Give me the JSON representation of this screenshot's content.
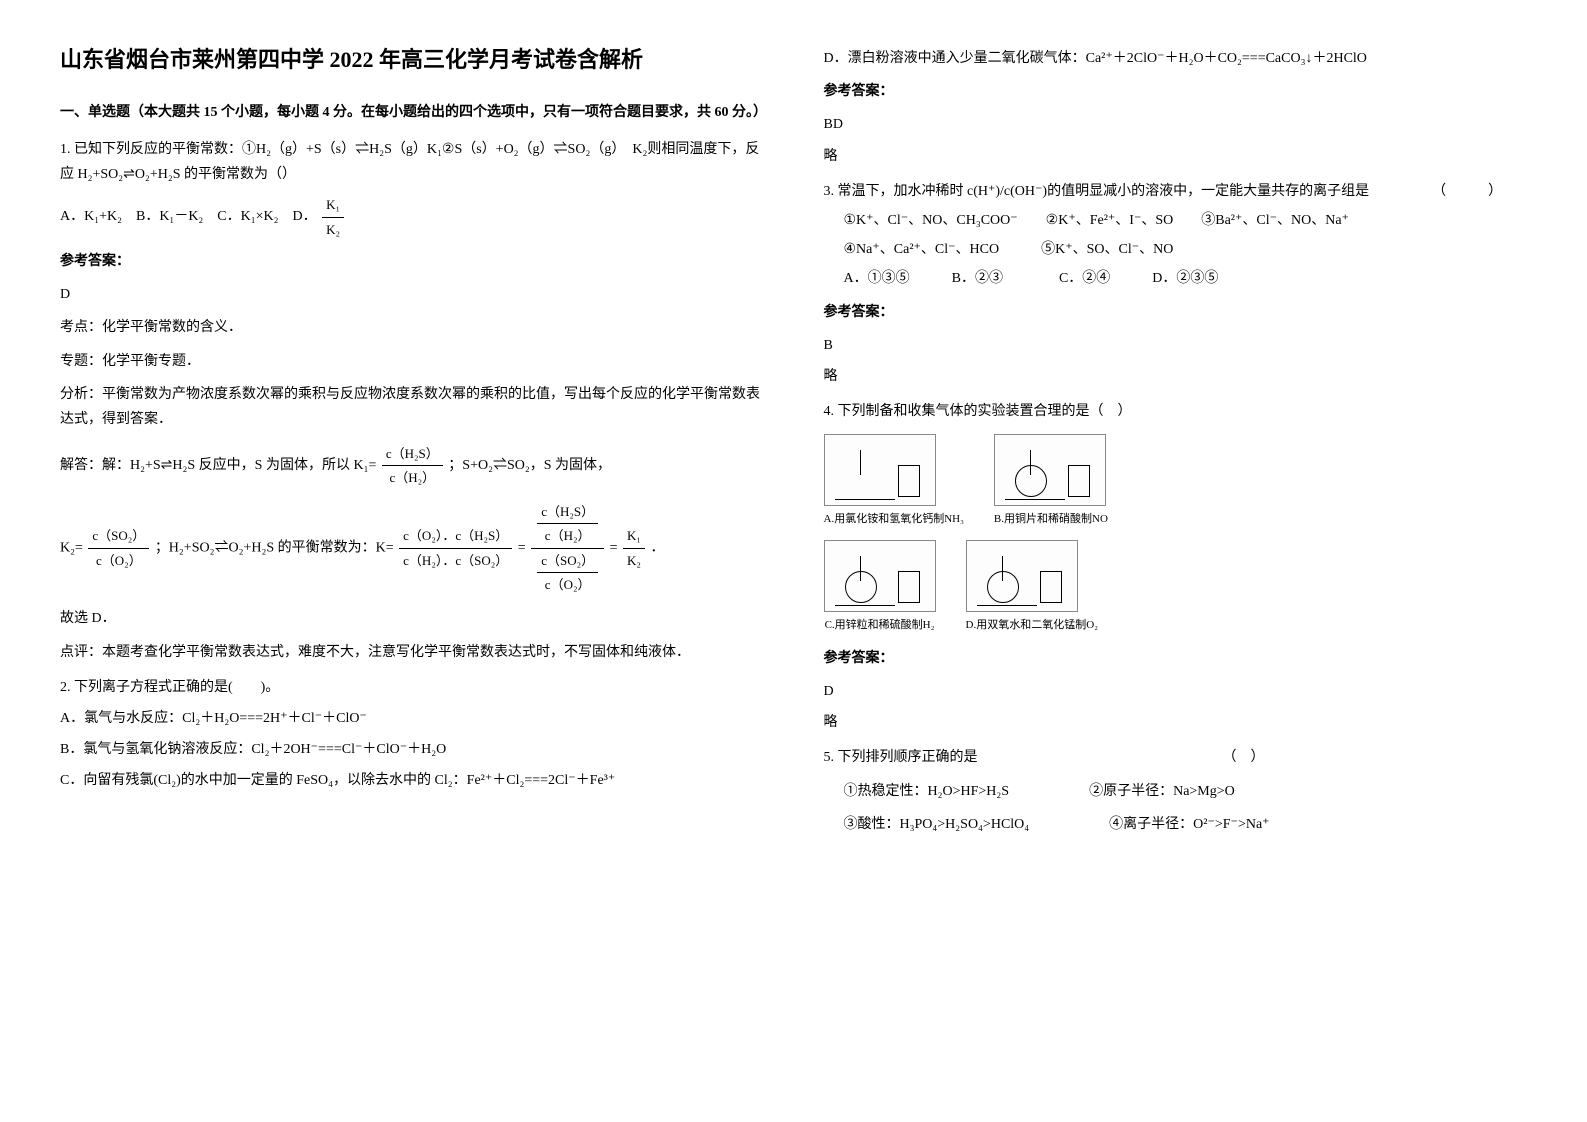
{
  "title": "山东省烟台市莱州第四中学 2022 年高三化学月考试卷含解析",
  "section1_header": "一、单选题（本大题共 15 个小题，每小题 4 分。在每小题给出的四个选项中，只有一项符合题目要求，共 60 分。）",
  "q1": {
    "stem": "1. 已知下列反应的平衡常数：①H₂（g）+S（s）⇌H₂S（g）K₁②S（s）+O₂（g）⇌SO₂（g）　K₂则相同温度下，反应 H₂+SO₂⇌O₂+H₂S 的平衡常数为（）",
    "options": "A．K₁+K₂　B．K₁－K₂　C．K₁×K₂　D．",
    "frac_num": "K₁",
    "frac_den": "K₂",
    "answer_label": "参考答案：",
    "answer": "D",
    "point": "考点：化学平衡常数的含义．",
    "topic": "专题：化学平衡专题．",
    "analysis": "分析：平衡常数为产物浓度系数次幂的乘积与反应物浓度系数次幂的乘积的比值，写出每个反应的化学平衡常数表达式，得到答案．",
    "solve_pre": "解答：解：H₂+S⇌H₂S 反应中，S 为固体，所以 K₁=",
    "solve_f1_num": "c（H₂S）",
    "solve_f1_den": "c（H₂）",
    "solve_mid1": "；S+O₂⇌SO₂，S 为固体，",
    "solve_k2pre": "K₂=",
    "solve_f2_num": "c（SO₂）",
    "solve_f2_den": "c（O₂）",
    "solve_mid2": "；H₂+SO₂⇌O₂+H₂S 的平衡常数为：K=",
    "solve_f3_num": "c（O₂）．c（H₂S）",
    "solve_f3_den": "c（H₂）．c（SO₂）",
    "solve_eq": "=",
    "solve_f4a_num": "c（H₂S）",
    "solve_f4a_den": "c（H₂）",
    "solve_f4b_num": "c（SO₂）",
    "solve_f4b_den": "c（O₂）",
    "solve_f5_num": "K₁",
    "solve_f5_den": "K₂",
    "solve_end": "．",
    "conclude": "故选 D．",
    "comment": "点评：本题考查化学平衡常数表达式，难度不大，注意写化学平衡常数表达式时，不写固体和纯液体．"
  },
  "q2": {
    "stem": "2. 下列离子方程式正确的是(　　)。",
    "optA": "A．氯气与水反应：Cl₂＋H₂O===2H⁺＋Cl⁻＋ClO⁻",
    "optB": "B．氯气与氢氧化钠溶液反应：Cl₂＋2OH⁻===Cl⁻＋ClO⁻＋H₂O",
    "optC": "C．向留有残氯(Cl₂)的水中加一定量的 FeSO₄，以除去水中的 Cl₂：Fe²⁺＋Cl₂===2Cl⁻＋Fe³⁺",
    "optD": "D．漂白粉溶液中通入少量二氧化碳气体：Ca²⁺＋2ClO⁻＋H₂O＋CO₂===CaCO₃↓＋2HClO",
    "answer_label": "参考答案：",
    "answer": "BD",
    "omit": "略"
  },
  "q3": {
    "stem": "3. 常温下，加水冲稀时 c(H⁺)/c(OH⁻)的值明显减小的溶液中，一定能大量共存的离子组是　　　　　（　　　）",
    "opt1": "①K⁺、Cl⁻、NO、CH₃COO⁻　　②K⁺、Fe²⁺、I⁻、SO　　③Ba²⁺、Cl⁻、NO、Na⁺",
    "opt2": "④Na⁺、Ca²⁺、Cl⁻、HCO　　　⑤K⁺、SO、Cl⁻、NO",
    "choices": "A．①③⑤　　　B．②③　　　　C．②④　　　D．②③⑤",
    "answer_label": "参考答案：",
    "answer": "B",
    "omit": "略"
  },
  "q4": {
    "stem": "4. 下列制备和收集气体的实验装置合理的是（　）",
    "figA": "A.用氯化铵和氢氧化钙制NH₃",
    "figB": "B.用铜片和稀硝酸制NO",
    "figC": "C.用锌粒和稀硫酸制H₂",
    "figD": "D.用双氧水和二氧化锰制O₂",
    "answer_label": "参考答案：",
    "answer": "D",
    "omit": "略"
  },
  "q5": {
    "stem": "5. 下列排列顺序正确的是　　　　　　　　　　　　　　　　　　（　）",
    "opt1": "①热稳定性：H₂O>HF>H₂S",
    "opt2": "②原子半径：Na>Mg>O",
    "opt3": "③酸性：H₃PO₄>H₂SO₄>HClO₄",
    "opt4": "④离子半径：O²⁻>F⁻>Na⁺"
  }
}
